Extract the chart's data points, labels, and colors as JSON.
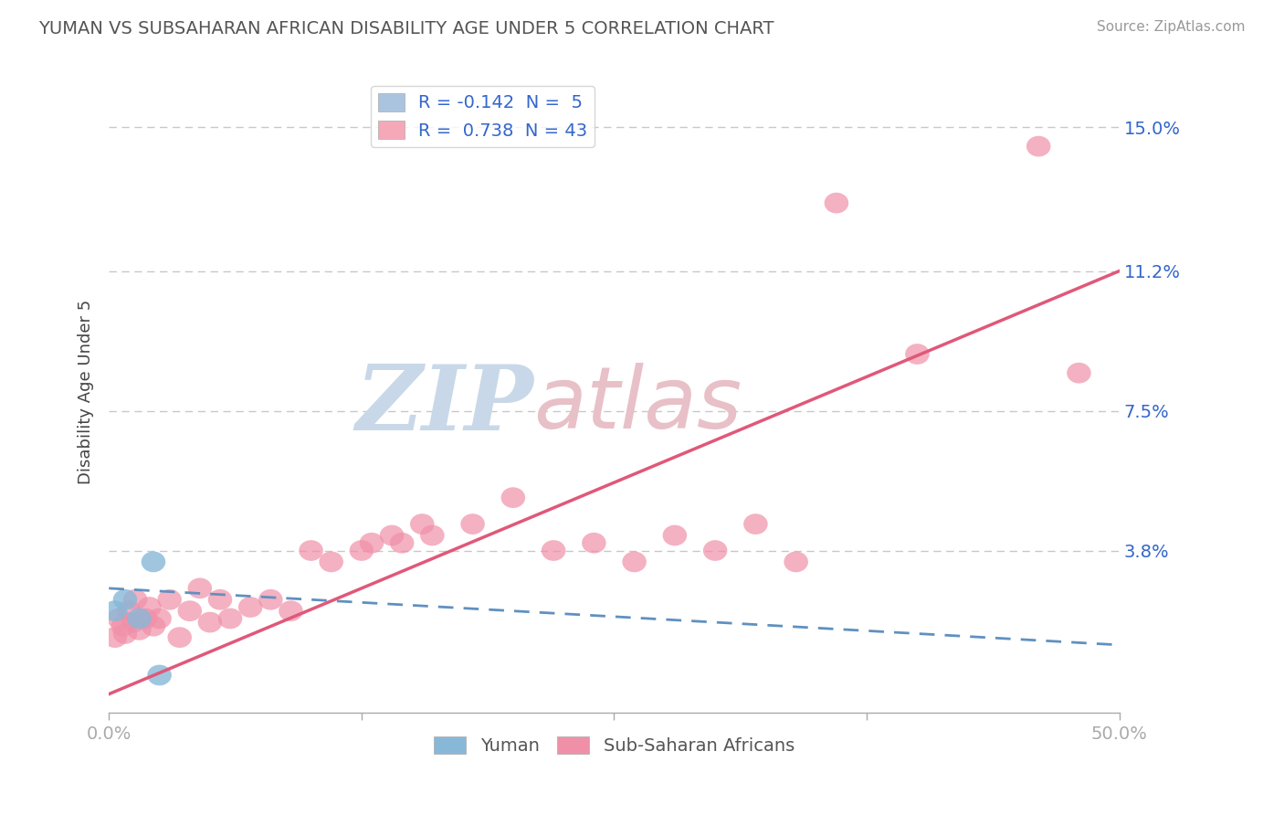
{
  "title": "YUMAN VS SUBSAHARAN AFRICAN DISABILITY AGE UNDER 5 CORRELATION CHART",
  "source": "Source: ZipAtlas.com",
  "ylabel": "Disability Age Under 5",
  "yticks": [
    0.0,
    3.8,
    7.5,
    11.2,
    15.0
  ],
  "ytick_labels": [
    "",
    "3.8%",
    "7.5%",
    "11.2%",
    "15.0%"
  ],
  "xlim": [
    0.0,
    50.0
  ],
  "ylim": [
    -0.5,
    16.5
  ],
  "legend_entries": [
    {
      "label": "R = -0.142  N =  5",
      "color": "#aac4e0"
    },
    {
      "label": "R =  0.738  N = 43",
      "color": "#f4a8b8"
    }
  ],
  "yuman_points": [
    [
      0.3,
      2.2
    ],
    [
      0.8,
      2.5
    ],
    [
      1.5,
      2.0
    ],
    [
      2.2,
      3.5
    ],
    [
      2.5,
      0.5
    ]
  ],
  "subsaharan_points": [
    [
      0.3,
      1.5
    ],
    [
      0.5,
      2.0
    ],
    [
      0.7,
      1.8
    ],
    [
      0.8,
      1.6
    ],
    [
      1.0,
      2.2
    ],
    [
      1.2,
      1.9
    ],
    [
      1.3,
      2.5
    ],
    [
      1.5,
      1.7
    ],
    [
      1.8,
      2.0
    ],
    [
      2.0,
      2.3
    ],
    [
      2.2,
      1.8
    ],
    [
      2.5,
      2.0
    ],
    [
      3.0,
      2.5
    ],
    [
      3.5,
      1.5
    ],
    [
      4.0,
      2.2
    ],
    [
      4.5,
      2.8
    ],
    [
      5.0,
      1.9
    ],
    [
      5.5,
      2.5
    ],
    [
      6.0,
      2.0
    ],
    [
      7.0,
      2.3
    ],
    [
      8.0,
      2.5
    ],
    [
      9.0,
      2.2
    ],
    [
      10.0,
      3.8
    ],
    [
      11.0,
      3.5
    ],
    [
      12.5,
      3.8
    ],
    [
      13.0,
      4.0
    ],
    [
      14.0,
      4.2
    ],
    [
      14.5,
      4.0
    ],
    [
      15.5,
      4.5
    ],
    [
      16.0,
      4.2
    ],
    [
      18.0,
      4.5
    ],
    [
      20.0,
      5.2
    ],
    [
      22.0,
      3.8
    ],
    [
      24.0,
      4.0
    ],
    [
      26.0,
      3.5
    ],
    [
      28.0,
      4.2
    ],
    [
      30.0,
      3.8
    ],
    [
      32.0,
      4.5
    ],
    [
      34.0,
      3.5
    ],
    [
      36.0,
      13.0
    ],
    [
      40.0,
      9.0
    ],
    [
      46.0,
      14.5
    ],
    [
      48.0,
      8.5
    ]
  ],
  "yuman_line": {
    "slope": -0.03,
    "intercept": 2.8
  },
  "subsaharan_line": {
    "slope": 0.224,
    "intercept": 0.0
  },
  "yuman_color": "#88b8d8",
  "subsaharan_color": "#f090a8",
  "yuman_line_color": "#6090c0",
  "subsaharan_line_color": "#e05878",
  "background_color": "#ffffff",
  "grid_color": "#c8c8c8",
  "watermark": "ZIPatlas",
  "watermark_blue": "#c8d8e8",
  "watermark_pink": "#e8c0c8"
}
